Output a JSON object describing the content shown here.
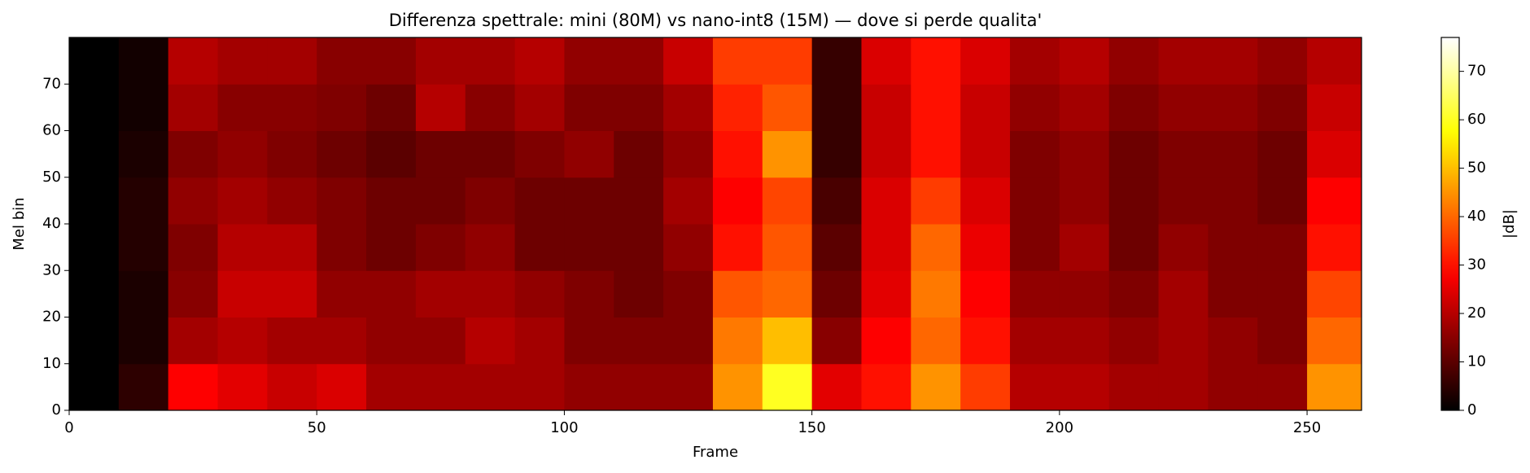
{
  "chart_data": {
    "type": "heatmap",
    "title": "Differenza spettrale: mini (80M) vs nano-int8 (15M) — dove si perde qualita'",
    "x_label": "Frame",
    "y_label": "Mel bin",
    "colorbar_label": "|dB|",
    "colormap": "hot",
    "x_bins": [
      0,
      10,
      20,
      30,
      40,
      50,
      60,
      70,
      80,
      90,
      100,
      110,
      120,
      130,
      140,
      150,
      160,
      170,
      180,
      190,
      200,
      210,
      220,
      230,
      240,
      250,
      261
    ],
    "y_bins": [
      0,
      10,
      20,
      30,
      40,
      50,
      60,
      70,
      80
    ],
    "values": [
      [
        0,
        0,
        0,
        0,
        0,
        0,
        0,
        0
      ],
      [
        5,
        3,
        3,
        4,
        4,
        3,
        2,
        2
      ],
      [
        28,
        18,
        15,
        14,
        16,
        14,
        18,
        20
      ],
      [
        25,
        20,
        22,
        20,
        18,
        16,
        15,
        18
      ],
      [
        22,
        18,
        22,
        20,
        16,
        14,
        15,
        18
      ],
      [
        24,
        18,
        16,
        14,
        14,
        12,
        14,
        15
      ],
      [
        18,
        16,
        16,
        12,
        12,
        10,
        12,
        15
      ],
      [
        18,
        16,
        18,
        14,
        12,
        12,
        20,
        18
      ],
      [
        18,
        20,
        18,
        16,
        14,
        12,
        15,
        18
      ],
      [
        18,
        18,
        16,
        12,
        12,
        14,
        18,
        20
      ],
      [
        16,
        14,
        14,
        12,
        12,
        16,
        14,
        16
      ],
      [
        16,
        14,
        12,
        12,
        12,
        12,
        14,
        16
      ],
      [
        16,
        14,
        14,
        16,
        18,
        16,
        18,
        22
      ],
      [
        45,
        42,
        38,
        30,
        28,
        30,
        32,
        35
      ],
      [
        60,
        50,
        40,
        38,
        36,
        45,
        38,
        35
      ],
      [
        25,
        15,
        12,
        10,
        8,
        6,
        6,
        6
      ],
      [
        30,
        28,
        25,
        24,
        24,
        22,
        22,
        24
      ],
      [
        45,
        40,
        42,
        40,
        35,
        30,
        30,
        30
      ],
      [
        35,
        30,
        28,
        26,
        24,
        22,
        22,
        24
      ],
      [
        20,
        18,
        16,
        14,
        14,
        14,
        16,
        18
      ],
      [
        20,
        18,
        16,
        18,
        16,
        16,
        18,
        20
      ],
      [
        18,
        16,
        14,
        12,
        12,
        12,
        14,
        16
      ],
      [
        18,
        18,
        18,
        16,
        14,
        14,
        16,
        18
      ],
      [
        16,
        16,
        14,
        14,
        14,
        14,
        16,
        18
      ],
      [
        16,
        14,
        14,
        14,
        12,
        12,
        14,
        16
      ],
      [
        45,
        40,
        36,
        30,
        28,
        24,
        22,
        20
      ]
    ],
    "xlim": [
      0,
      261
    ],
    "ylim": [
      0,
      80
    ],
    "clim": [
      0,
      77
    ],
    "xticks": [
      0,
      50,
      100,
      150,
      200,
      250
    ],
    "yticks": [
      0,
      10,
      20,
      30,
      40,
      50,
      60,
      70
    ],
    "cticks": [
      0,
      10,
      20,
      30,
      40,
      50,
      60,
      70
    ]
  }
}
